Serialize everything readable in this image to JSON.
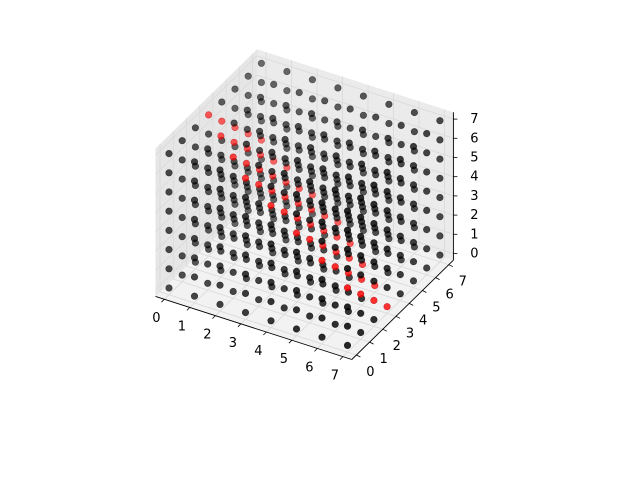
{
  "chart_data": {
    "type": "scatter",
    "projection": "3d",
    "title": "",
    "xlabel": "",
    "ylabel": "",
    "zlabel": "",
    "grid": true,
    "xlim": [
      0,
      7
    ],
    "ylim": [
      0,
      7
    ],
    "zlim": [
      0,
      7
    ],
    "x_ticks": [
      0,
      1,
      2,
      3,
      4,
      5,
      6,
      7
    ],
    "y_ticks": [
      0,
      1,
      2,
      3,
      4,
      5,
      6,
      7
    ],
    "z_ticks": [
      0,
      1,
      2,
      3,
      4,
      5,
      6,
      7
    ],
    "x_tick_labels": [
      "0",
      "1",
      "2",
      "3",
      "4",
      "5",
      "6",
      "7"
    ],
    "y_tick_labels": [
      "0",
      "1",
      "2",
      "3",
      "4",
      "5",
      "6",
      "7"
    ],
    "z_tick_labels": [
      "0",
      "1",
      "2",
      "3",
      "4",
      "5",
      "6",
      "7"
    ],
    "points": "8x8x8 lattice, x,y,z each in 0..7 step 1 (512 points)",
    "highlight_rule": "points with x + y + z = 10 are red",
    "colors": {
      "base": "#000000",
      "highlight": "#ff0000",
      "pane": "#f2f2f2",
      "grid": "#d9d9d9",
      "axis": "#000000"
    }
  }
}
